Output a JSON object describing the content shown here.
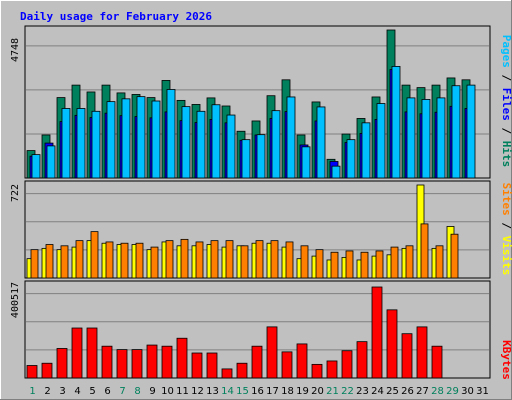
{
  "title": "Daily usage for February 2026",
  "colors": {
    "background": "#c0c0c0",
    "title": "#0000ff",
    "hits": "#00805c",
    "files": "#0000ff",
    "pages": "#00c0ff",
    "visits": "#ffff00",
    "sites": "#ff8000",
    "kbytes": "#ff0000",
    "weekend_day": "#00805c",
    "weekday": "#000000"
  },
  "chart_data": [
    {
      "type": "bar",
      "title": "Daily usage for February 2026",
      "panel": "hits-files-pages",
      "ylabel": [
        "Pages",
        "Files",
        "Hits"
      ],
      "ymax_label": "4748",
      "ylim": [
        0,
        4748
      ],
      "categories": [
        "1",
        "2",
        "3",
        "4",
        "5",
        "6",
        "7",
        "8",
        "9",
        "10",
        "11",
        "12",
        "13",
        "14",
        "15",
        "16",
        "17",
        "18",
        "19",
        "20",
        "21",
        "22",
        "23",
        "24",
        "25",
        "26",
        "27",
        "28",
        "29",
        "30",
        "31"
      ],
      "series": [
        {
          "name": "Hits",
          "values": [
            880,
            1380,
            2580,
            2980,
            2760,
            2980,
            2730,
            2680,
            2580,
            3130,
            2490,
            2360,
            2570,
            2310,
            1500,
            1830,
            2640,
            3150,
            1380,
            2440,
            600,
            1410,
            1910,
            2600,
            4748,
            2980,
            2900,
            2980,
            3210,
            3150,
            0
          ]
        },
        {
          "name": "Files",
          "values": [
            700,
            1120,
            1810,
            2010,
            1940,
            2080,
            2000,
            1970,
            1930,
            2120,
            1840,
            1780,
            1880,
            1770,
            1210,
            1380,
            1910,
            2130,
            1060,
            1830,
            530,
            1140,
            1430,
            1880,
            3480,
            2120,
            2060,
            2110,
            2300,
            2230,
            0
          ]
        },
        {
          "name": "Pages",
          "values": [
            750,
            1030,
            2230,
            2230,
            2140,
            2450,
            2540,
            2610,
            2470,
            2840,
            2290,
            2140,
            2350,
            2020,
            1230,
            1390,
            2160,
            2600,
            1000,
            2280,
            380,
            1230,
            1770,
            2390,
            3580,
            2570,
            2520,
            2570,
            2960,
            2980,
            0
          ]
        }
      ]
    },
    {
      "type": "bar",
      "panel": "visits-sites",
      "ylabel": [
        "Sites",
        "Visits"
      ],
      "ymax_label": "722",
      "ylim": [
        0,
        722
      ],
      "categories": [
        "1",
        "2",
        "3",
        "4",
        "5",
        "6",
        "7",
        "8",
        "9",
        "10",
        "11",
        "12",
        "13",
        "14",
        "15",
        "16",
        "17",
        "18",
        "19",
        "20",
        "21",
        "22",
        "23",
        "24",
        "25",
        "26",
        "27",
        "28",
        "29",
        "30",
        "31"
      ],
      "series": [
        {
          "name": "Visits",
          "values": [
            150,
            230,
            220,
            240,
            290,
            270,
            260,
            260,
            220,
            280,
            250,
            250,
            260,
            240,
            250,
            270,
            270,
            240,
            150,
            170,
            140,
            160,
            140,
            170,
            180,
            230,
            722,
            230,
            400,
            0,
            0
          ]
        },
        {
          "name": "Sites",
          "values": [
            220,
            260,
            250,
            290,
            360,
            280,
            270,
            270,
            240,
            290,
            300,
            280,
            290,
            290,
            250,
            290,
            290,
            280,
            250,
            220,
            200,
            210,
            200,
            210,
            240,
            250,
            420,
            250,
            340,
            0,
            0
          ]
        }
      ]
    },
    {
      "type": "bar",
      "panel": "kbytes",
      "ylabel": "KBytes",
      "ymax_label": "400517",
      "ylim": [
        0,
        400517
      ],
      "categories": [
        "1",
        "2",
        "3",
        "4",
        "5",
        "6",
        "7",
        "8",
        "9",
        "10",
        "11",
        "12",
        "13",
        "14",
        "15",
        "16",
        "17",
        "18",
        "19",
        "20",
        "21",
        "22",
        "23",
        "24",
        "25",
        "26",
        "27",
        "28",
        "29",
        "30",
        "31"
      ],
      "series": [
        {
          "name": "KBytes",
          "values": [
            55000,
            65000,
            130000,
            220000,
            220000,
            140000,
            125000,
            125000,
            145000,
            140000,
            175000,
            110000,
            110000,
            40000,
            65000,
            140000,
            225000,
            115000,
            150000,
            60000,
            75000,
            120000,
            160000,
            400517,
            300000,
            195000,
            225000,
            140000,
            0,
            0,
            0
          ]
        }
      ]
    }
  ],
  "x_axis": {
    "days": [
      "1",
      "2",
      "3",
      "4",
      "5",
      "6",
      "7",
      "8",
      "9",
      "10",
      "11",
      "12",
      "13",
      "14",
      "15",
      "16",
      "17",
      "18",
      "19",
      "20",
      "21",
      "22",
      "23",
      "24",
      "25",
      "26",
      "27",
      "28",
      "29",
      "30",
      "31"
    ],
    "weekend": [
      true,
      false,
      false,
      false,
      false,
      false,
      true,
      true,
      false,
      false,
      false,
      false,
      false,
      true,
      true,
      false,
      false,
      false,
      false,
      false,
      true,
      true,
      false,
      false,
      false,
      false,
      false,
      true,
      true,
      false,
      false
    ]
  }
}
